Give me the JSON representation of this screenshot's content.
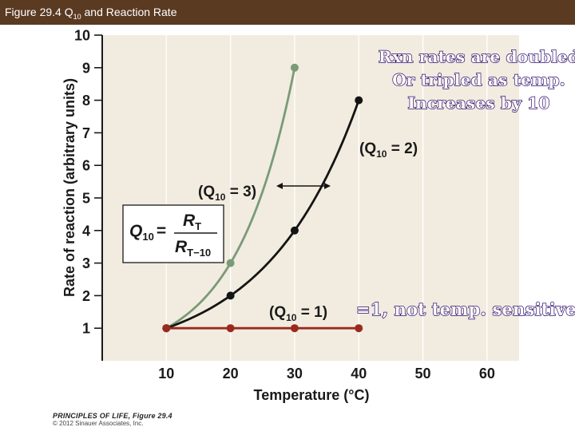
{
  "slide": {
    "title_prefix": "Figure 29.4  Q",
    "title_sub": "10",
    "title_suffix": " and Reaction Rate"
  },
  "annotations": {
    "top_lines": [
      "Rxn rates are doubled",
      "Or tripled as temp.",
      "Increases by 10"
    ],
    "bottom": "=1, not temp. sensitive"
  },
  "footer": {
    "line1": "PRINCIPLES OF LIFE, Figure 29.4",
    "line2": "© 2012 Sinauer Associates, Inc."
  },
  "colors": {
    "plot_bg": "#f1ecdf",
    "q3_series": "#7a9a78",
    "q2_series": "#141414",
    "q1_series": "#9a2a20",
    "title_bar": "#5b3a22"
  },
  "chart_data": {
    "type": "line",
    "xlabel": "Temperature (°C)",
    "ylabel": "Rate of reaction (arbitrary units)",
    "xlim": [
      0,
      65
    ],
    "ylim": [
      0,
      10
    ],
    "xticks": [
      10,
      20,
      30,
      40,
      50,
      60
    ],
    "yticks": [
      1,
      2,
      3,
      4,
      5,
      6,
      7,
      8,
      9,
      10
    ],
    "series": [
      {
        "name": "(Q10 = 3)",
        "x": [
          10,
          20,
          30
        ],
        "y": [
          1,
          3,
          9
        ]
      },
      {
        "name": "(Q10 = 2)",
        "x": [
          10,
          20,
          30,
          40
        ],
        "y": [
          1,
          2,
          4,
          8
        ]
      },
      {
        "name": "(Q10 = 1)",
        "x": [
          10,
          20,
          30,
          40
        ],
        "y": [
          1,
          1,
          1,
          1
        ]
      }
    ],
    "series_labels": {
      "q3": {
        "pre": "(Q",
        "sub": "10",
        "post": " = 3)"
      },
      "q2": {
        "pre": "(Q",
        "sub": "10",
        "post": " = 2)"
      },
      "q1": {
        "pre": "(Q",
        "sub": "10",
        "post": " = 1)"
      }
    },
    "formula": {
      "lhs": "Q",
      "lhs_sub": "10",
      "eq": "=",
      "num": "R",
      "num_sub": "T",
      "den": "R",
      "den_sub": "T−10"
    }
  }
}
